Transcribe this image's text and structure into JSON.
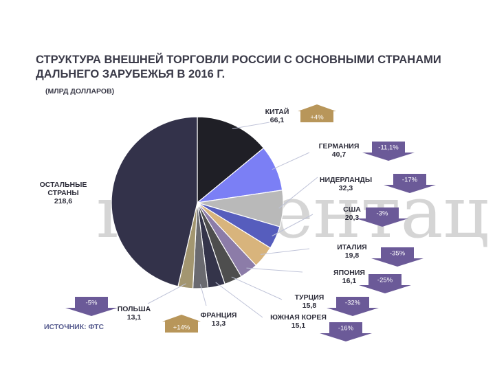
{
  "title_line1": "СТРУКТУРА ВНЕШНЕЙ ТОРГОВЛИ РОССИИ С ОСНОВНЫМИ СТРАНАМИ",
  "title_line2": "ДАЛЬНЕГО ЗАРУБЕЖЬЯ В 2016 Г.",
  "subtitle": "(МЛРД ДОЛЛАРОВ)",
  "source": "ИСТОЧНИК: ФТС",
  "watermark": "презентац",
  "colors": {
    "up_badge": "#b8965a",
    "down_badge": "#6b5a98"
  },
  "chart_data": {
    "type": "pie",
    "title": "",
    "slices": [
      {
        "name": "КИТАЙ",
        "value": "66,1",
        "amount": 66.1,
        "change": "+4%",
        "trend": "up",
        "color": "#1f1f26"
      },
      {
        "name": "ГЕРМАНИЯ",
        "value": "40,7",
        "amount": 40.7,
        "change": "-11,1%",
        "trend": "down",
        "color": "#7b7ff5"
      },
      {
        "name": "НИДЕРЛАНДЫ",
        "value": "32,3",
        "amount": 32.3,
        "change": "-17%",
        "trend": "down",
        "color": "#b9b9b9"
      },
      {
        "name": "США",
        "value": "20,3",
        "amount": 20.3,
        "change": "-3%",
        "trend": "down",
        "color": "#565dbd"
      },
      {
        "name": "ИТАЛИЯ",
        "value": "19,8",
        "amount": 19.8,
        "change": "-35%",
        "trend": "down",
        "color": "#d8b47c"
      },
      {
        "name": "ЯПОНИЯ",
        "value": "16,1",
        "amount": 16.1,
        "change": "-25%",
        "trend": "down",
        "color": "#8c7ca8"
      },
      {
        "name": "ТУРЦИЯ",
        "value": "15,8",
        "amount": 15.8,
        "change": "-32%",
        "trend": "down",
        "color": "#4e4e4e"
      },
      {
        "name": "ЮЖНАЯ КОРЕЯ",
        "value": "15,1",
        "amount": 15.1,
        "change": "-16%",
        "trend": "down",
        "color": "#34344a"
      },
      {
        "name": "ФРАНЦИЯ",
        "value": "13,3",
        "amount": 13.3,
        "change": "+14%",
        "trend": "up",
        "color": "#6a6a70"
      },
      {
        "name": "ПОЛЬША",
        "value": "13,1",
        "amount": 13.1,
        "change": "-5%",
        "trend": "down",
        "color": "#a39670"
      },
      {
        "name": "ОСТАЛЬНЫЕ СТРАНЫ",
        "value": "218,6",
        "amount": 218.6,
        "change": "",
        "trend": "",
        "color": "#33324a"
      }
    ]
  }
}
